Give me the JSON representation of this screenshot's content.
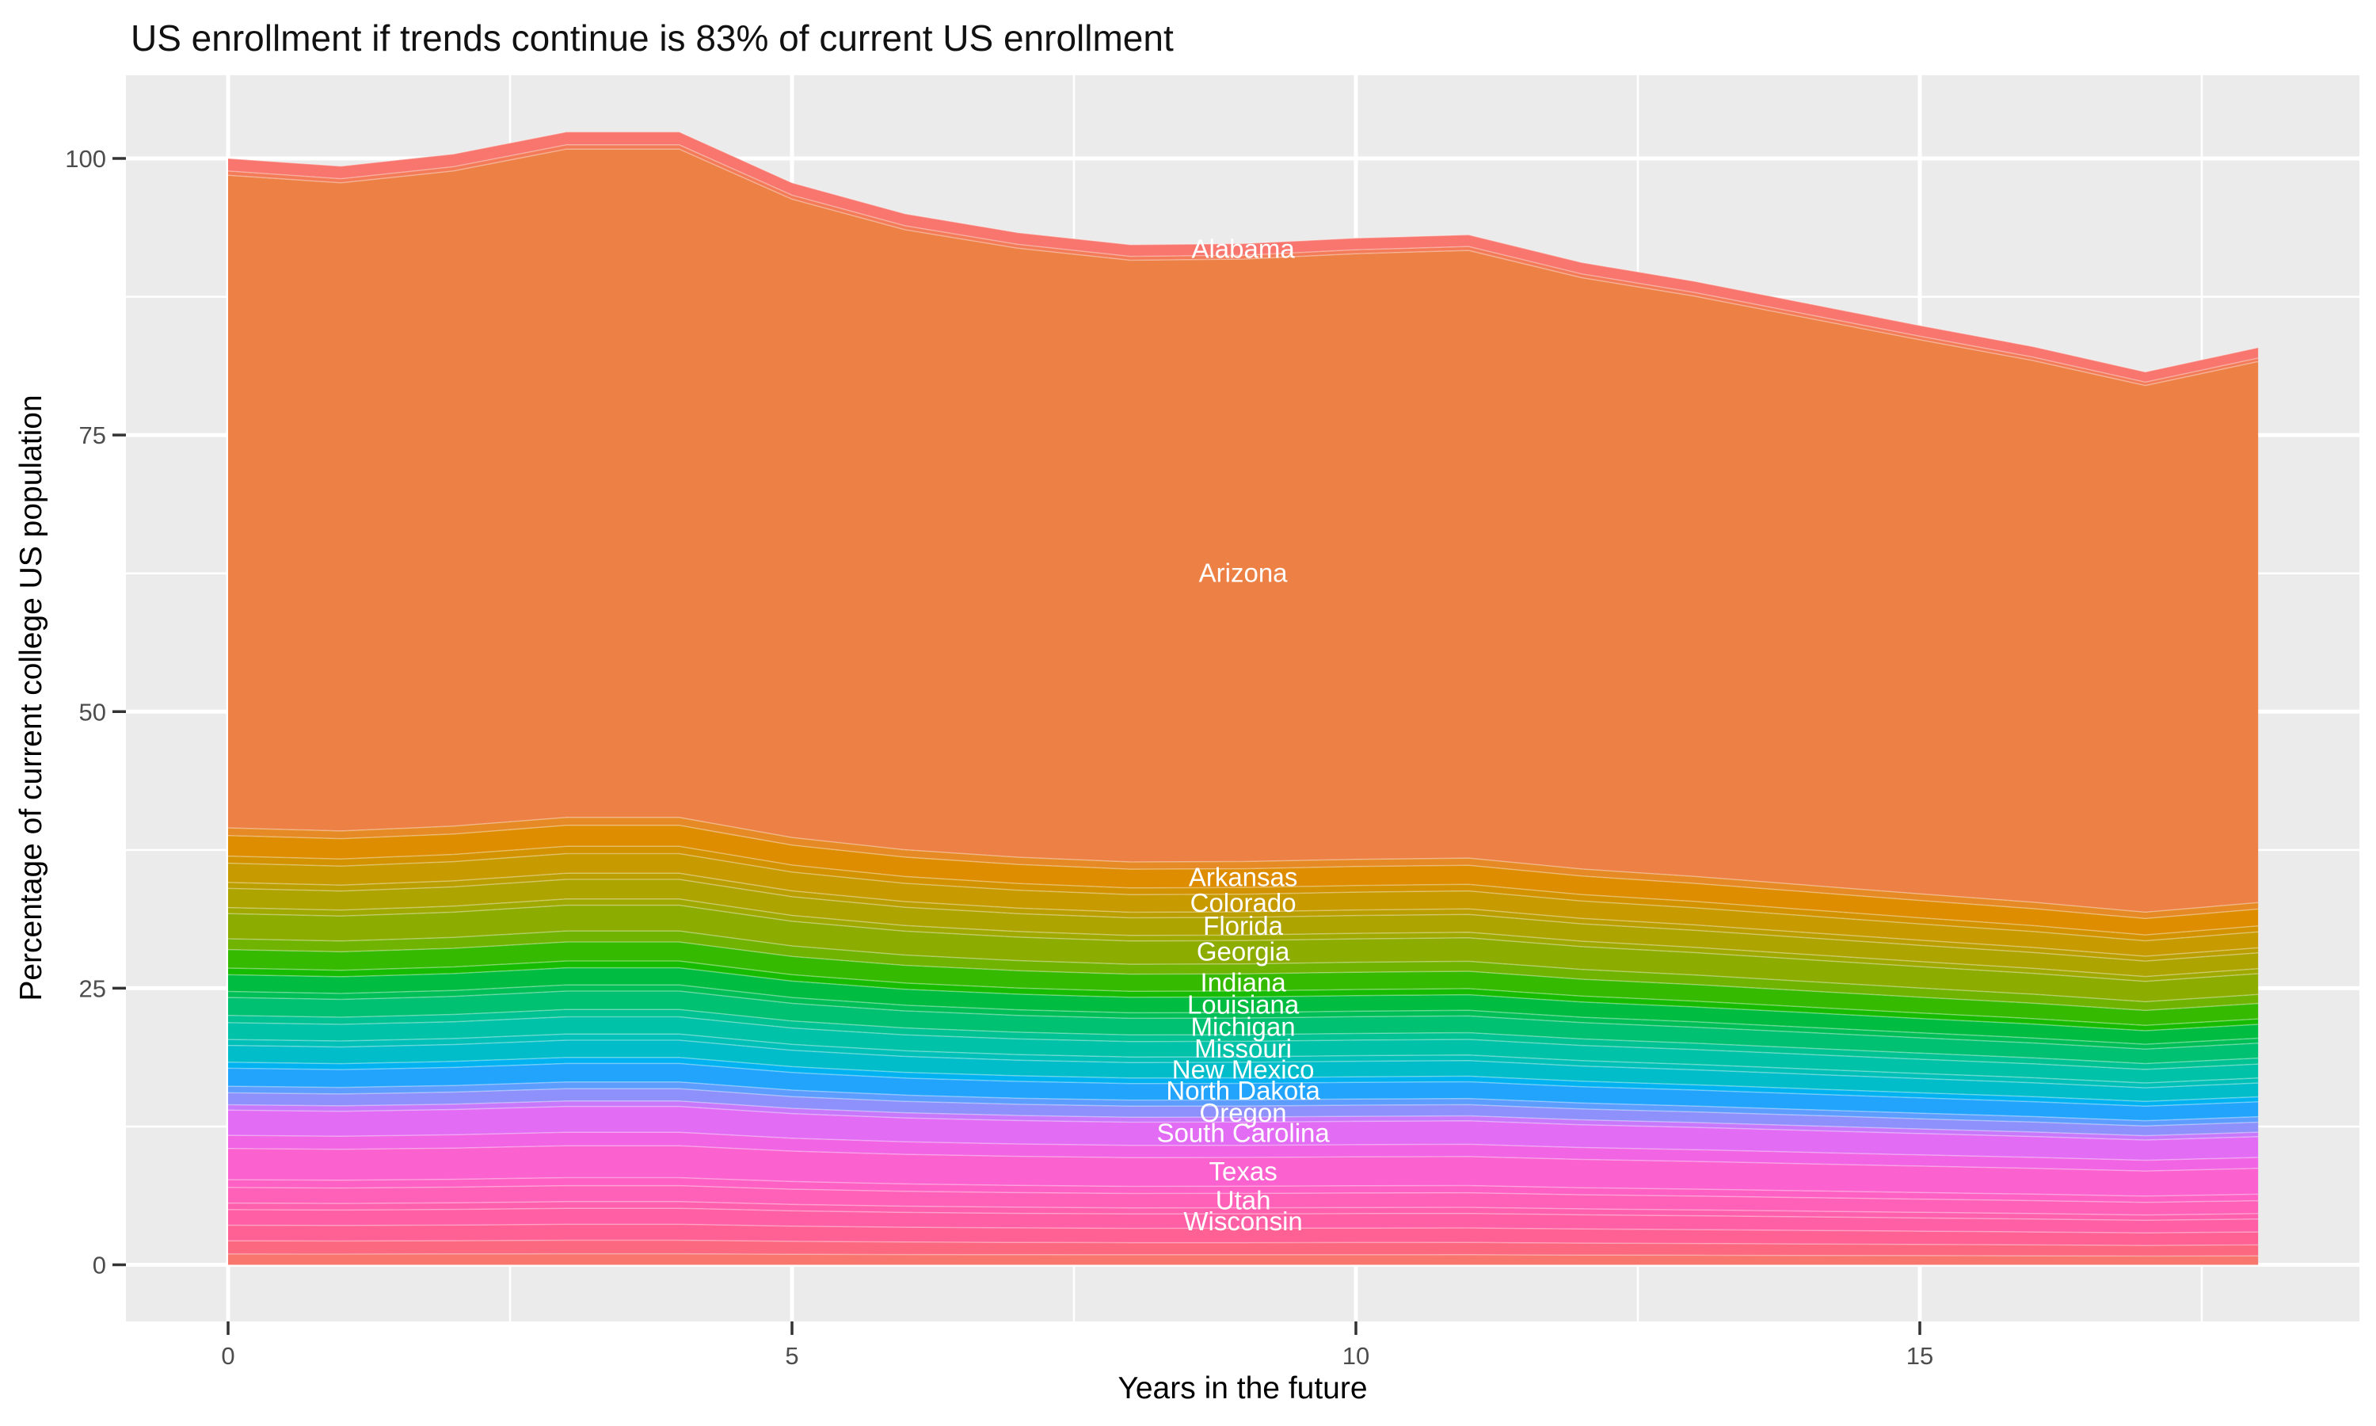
{
  "chart_data": {
    "type": "area",
    "stacked": true,
    "title": "US enrollment if trends continue is 83% of current US enrollment",
    "xlabel": "Years in the future",
    "ylabel": "Percentage of current college US population",
    "background": {
      "panel": "#EBEBEB",
      "grid": "#FFFFFF",
      "page": "#FFFFFF"
    },
    "axis": {
      "x_ticks": [
        0,
        5,
        10,
        15
      ],
      "x_minor": [
        2.5,
        7.5,
        12.5,
        17.5
      ],
      "y_ticks": [
        0,
        25,
        50,
        75,
        100
      ],
      "y_minor": [
        12.5,
        37.5,
        62.5,
        87.5
      ],
      "x_range": [
        0,
        18
      ],
      "y_range": [
        0,
        102.4
      ],
      "tick_color": "#333333",
      "tick_label_color": "#4d4d4d"
    },
    "x": [
      0,
      1,
      2,
      3,
      4,
      5,
      6,
      7,
      8,
      9,
      10,
      11,
      12,
      13,
      14,
      15,
      16,
      17,
      18
    ],
    "total_pct": [
      100.0,
      99.3,
      100.4,
      102.4,
      102.4,
      97.8,
      95.0,
      93.3,
      92.2,
      92.3,
      92.8,
      93.1,
      90.6,
      88.9,
      86.9,
      84.9,
      83.0,
      80.7,
      82.9
    ],
    "label_year": 9,
    "total_at_label_year": 92.3,
    "bands_note": "stacked state bands, bottom to top; from/to are cumulative % at year 9; unlabeled thin slivers shown as empty state names",
    "bands": [
      {
        "state": "",
        "from": 0.0,
        "to": 0.9,
        "color": "#f8766d"
      },
      {
        "state": "",
        "from": 0.9,
        "to": 2.0,
        "color": "#fc687f"
      },
      {
        "state": "",
        "from": 2.0,
        "to": 3.3,
        "color": "#ff6194"
      },
      {
        "state": "Wisconsin",
        "from": 3.3,
        "to": 4.6,
        "color": "#ff60a5",
        "labeled": true
      },
      {
        "state": "",
        "from": 4.6,
        "to": 5.15,
        "color": "#ff60ae"
      },
      {
        "state": "Utah",
        "from": 5.15,
        "to": 6.45,
        "color": "#ff61b8",
        "labeled": true
      },
      {
        "state": "",
        "from": 6.45,
        "to": 7.1,
        "color": "#fe61c3"
      },
      {
        "state": "Texas",
        "from": 7.1,
        "to": 9.7,
        "color": "#fb61cf",
        "labeled": true
      },
      {
        "state": "",
        "from": 9.7,
        "to": 10.8,
        "color": "#f164e3"
      },
      {
        "state": "South Carolina",
        "from": 10.8,
        "to": 12.9,
        "color": "#e26df4",
        "labeled": true
      },
      {
        "state": "",
        "from": 12.9,
        "to": 13.35,
        "color": "#c878fa"
      },
      {
        "state": "Oregon",
        "from": 13.35,
        "to": 14.35,
        "color": "#8e90fc",
        "labeled": true
      },
      {
        "state": "",
        "from": 14.35,
        "to": 14.9,
        "color": "#5d9dff"
      },
      {
        "state": "North Dakota",
        "from": 14.9,
        "to": 16.4,
        "color": "#22a4fd",
        "labeled": true
      },
      {
        "state": "",
        "from": 16.4,
        "to": 16.9,
        "color": "#00b2f0"
      },
      {
        "state": "New Mexico",
        "from": 16.9,
        "to": 18.3,
        "color": "#00bdc9",
        "labeled": true
      },
      {
        "state": "",
        "from": 18.3,
        "to": 18.8,
        "color": "#00c0b8"
      },
      {
        "state": "Missouri",
        "from": 18.8,
        "to": 20.2,
        "color": "#00c2a8",
        "labeled": true
      },
      {
        "state": "",
        "from": 20.2,
        "to": 20.8,
        "color": "#00c292"
      },
      {
        "state": "Michigan",
        "from": 20.8,
        "to": 22.3,
        "color": "#00c071",
        "labeled": true
      },
      {
        "state": "",
        "from": 22.3,
        "to": 22.8,
        "color": "#00bf57"
      },
      {
        "state": "Louisiana",
        "from": 22.8,
        "to": 24.2,
        "color": "#00bd41",
        "labeled": true
      },
      {
        "state": "",
        "from": 24.2,
        "to": 24.75,
        "color": "#17bc00"
      },
      {
        "state": "Indiana",
        "from": 24.75,
        "to": 26.3,
        "color": "#35ba00",
        "labeled": true
      },
      {
        "state": "",
        "from": 26.3,
        "to": 27.2,
        "color": "#70b300"
      },
      {
        "state": "Georgia",
        "from": 27.2,
        "to": 29.3,
        "color": "#8dac00",
        "labeled": true
      },
      {
        "state": "",
        "from": 29.3,
        "to": 29.8,
        "color": "#9fa900"
      },
      {
        "state": "Florida",
        "from": 29.8,
        "to": 31.4,
        "color": "#aea400",
        "labeled": true
      },
      {
        "state": "",
        "from": 31.4,
        "to": 31.9,
        "color": "#bb9f00"
      },
      {
        "state": "Colorado",
        "from": 31.9,
        "to": 33.5,
        "color": "#c79b00",
        "labeled": true
      },
      {
        "state": "",
        "from": 33.5,
        "to": 34.1,
        "color": "#d39300"
      },
      {
        "state": "Arkansas",
        "from": 34.1,
        "to": 35.8,
        "color": "#de8c00",
        "labeled": true
      },
      {
        "state": "",
        "from": 35.8,
        "to": 36.45,
        "color": "#e68a25"
      },
      {
        "state": "Arizona",
        "from": 36.45,
        "to": 90.9,
        "color": "#ed8045",
        "labeled": true
      },
      {
        "state": "",
        "from": 90.9,
        "to": 91.25,
        "color": "#f37b58"
      },
      {
        "state": "Alabama",
        "from": 91.25,
        "to": 92.3,
        "color": "#f8766d",
        "labeled": true
      }
    ],
    "state_labels": [
      {
        "state": "Alabama",
        "center_pct": 91.8
      },
      {
        "state": "Arizona",
        "center_pct": 62.5
      },
      {
        "state": "Arkansas",
        "center_pct": 35.0
      },
      {
        "state": "Colorado",
        "center_pct": 32.7
      },
      {
        "state": "Florida",
        "center_pct": 30.6
      },
      {
        "state": "Georgia",
        "center_pct": 28.3
      },
      {
        "state": "Indiana",
        "center_pct": 25.5
      },
      {
        "state": "Louisiana",
        "center_pct": 23.5
      },
      {
        "state": "Michigan",
        "center_pct": 21.5
      },
      {
        "state": "Missouri",
        "center_pct": 19.5
      },
      {
        "state": "New Mexico",
        "center_pct": 17.6
      },
      {
        "state": "North Dakota",
        "center_pct": 15.7
      },
      {
        "state": "Oregon",
        "center_pct": 13.7
      },
      {
        "state": "South Carolina",
        "center_pct": 11.9
      },
      {
        "state": "Texas",
        "center_pct": 8.4
      },
      {
        "state": "Utah",
        "center_pct": 5.8
      },
      {
        "state": "Wisconsin",
        "center_pct": 3.9
      }
    ]
  }
}
